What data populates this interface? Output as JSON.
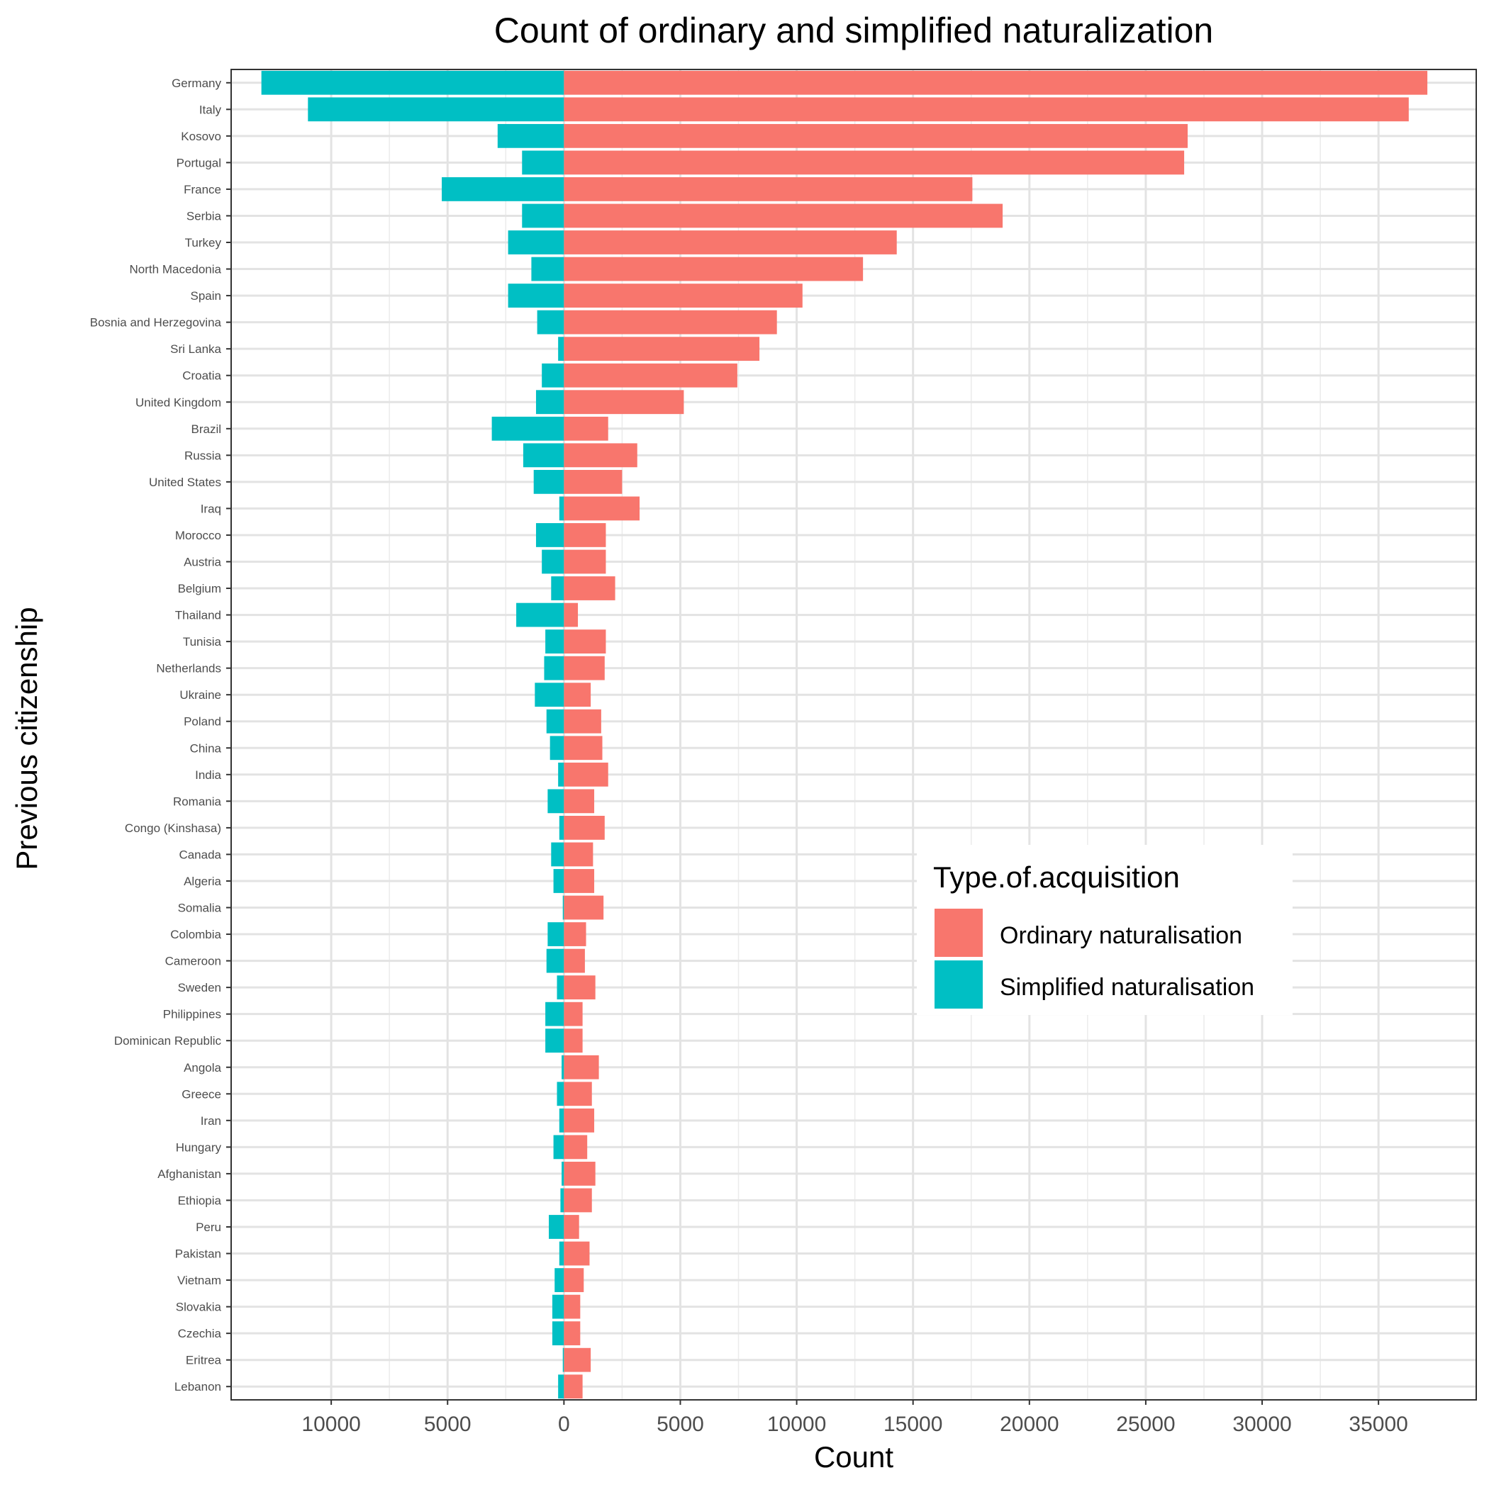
{
  "chart_data": {
    "type": "bar",
    "orientation": "horizontal",
    "stacked": "diverging",
    "title": "Count of ordinary and simplified naturalization",
    "xlabel": "Count",
    "ylabel": "Previous citizenship",
    "xlim": [
      -14300,
      39200
    ],
    "x_ticks": [
      -10000,
      -5000,
      0,
      5000,
      10000,
      15000,
      20000,
      25000,
      30000,
      35000
    ],
    "x_tick_labels": [
      "10000",
      "5000",
      "0",
      "5000",
      "10000",
      "15000",
      "20000",
      "25000",
      "30000",
      "35000"
    ],
    "grid": true,
    "legend": {
      "title": "Type.of.acquisition",
      "position": "right-center (inside plot)",
      "entries": [
        "Ordinary naturalisation",
        "Simplified naturalisation"
      ]
    },
    "colors": {
      "ordinary": "#F8766D",
      "simplified": "#00BFC4"
    },
    "categories": [
      "Germany",
      "Italy",
      "Kosovo",
      "Portugal",
      "France",
      "Serbia",
      "Turkey",
      "North Macedonia",
      "Spain",
      "Bosnia and Herzegovina",
      "Sri Lanka",
      "Croatia",
      "United Kingdom",
      "Brazil",
      "Russia",
      "United States",
      "Iraq",
      "Morocco",
      "Austria",
      "Belgium",
      "Thailand",
      "Tunisia",
      "Netherlands",
      "Ukraine",
      "Poland",
      "China",
      "India",
      "Romania",
      "Congo (Kinshasa)",
      "Canada",
      "Algeria",
      "Somalia",
      "Colombia",
      "Cameroon",
      "Sweden",
      "Philippines",
      "Dominican Republic",
      "Angola",
      "Greece",
      "Iran",
      "Hungary",
      "Afghanistan",
      "Ethiopia",
      "Peru",
      "Pakistan",
      "Vietnam",
      "Slovakia",
      "Czechia",
      "Eritrea",
      "Lebanon"
    ],
    "series": [
      {
        "name": "Ordinary naturalisation",
        "values": [
          37100,
          36300,
          26800,
          26650,
          17550,
          18850,
          14300,
          12850,
          10250,
          9150,
          8400,
          7450,
          5150,
          1900,
          3150,
          2500,
          3250,
          1800,
          1800,
          2200,
          600,
          1800,
          1750,
          1150,
          1600,
          1650,
          1900,
          1300,
          1750,
          1250,
          1300,
          1700,
          950,
          900,
          1350,
          800,
          800,
          1500,
          1200,
          1300,
          1000,
          1350,
          1200,
          650,
          1100,
          850,
          700,
          700,
          1150,
          800
        ]
      },
      {
        "name": "Simplified naturalisation",
        "values": [
          -13000,
          -11000,
          -2850,
          -1800,
          -5250,
          -1800,
          -2400,
          -1400,
          -2400,
          -1150,
          -250,
          -950,
          -1200,
          -3100,
          -1750,
          -1300,
          -200,
          -1200,
          -950,
          -550,
          -2050,
          -800,
          -850,
          -1250,
          -750,
          -600,
          -250,
          -700,
          -200,
          -550,
          -450,
          -50,
          -700,
          -750,
          -300,
          -800,
          -800,
          -100,
          -300,
          -200,
          -450,
          -100,
          -150,
          -650,
          -200,
          -400,
          -500,
          -500,
          -50,
          -250
        ]
      }
    ]
  }
}
